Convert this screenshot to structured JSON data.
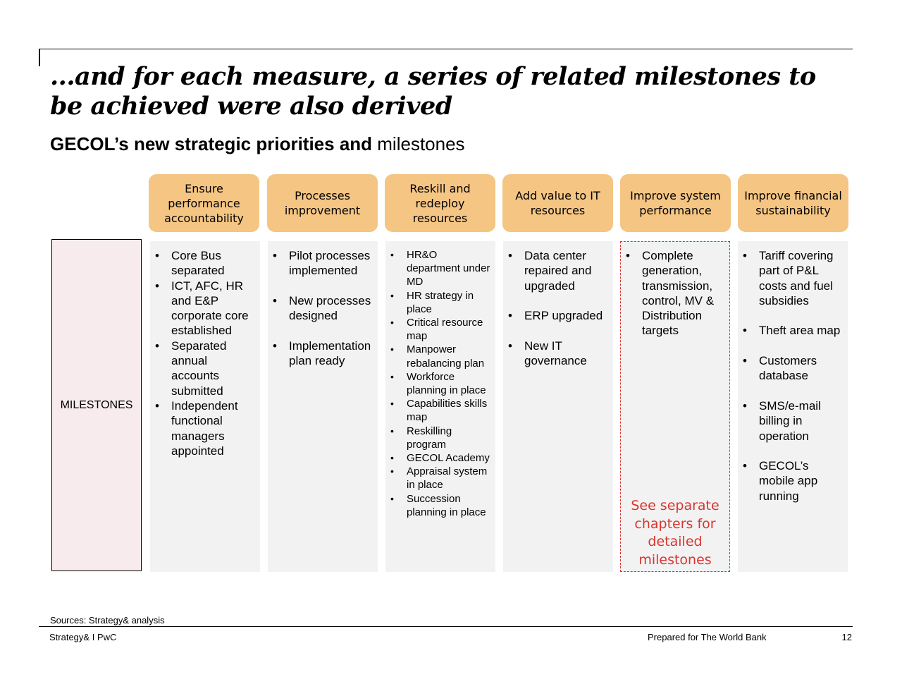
{
  "title": "...and for each measure, a series of related milestones to be achieved were also derived",
  "subtitle": {
    "bold": "GECOL’s new strategic priorities and",
    "regular": " milestones"
  },
  "row_label": "MILESTONES",
  "columns": [
    {
      "header": "Ensure performance accountability",
      "items": [
        "Core Bus separated",
        "ICT, AFC, HR and E&P corporate core established",
        "Separated annual accounts submitted",
        "Independent functional managers appointed"
      ]
    },
    {
      "header": "Processes improvement",
      "items": [
        "Pilot processes implemented",
        "New processes designed",
        "Implementation plan ready"
      ]
    },
    {
      "header": "Reskill and redeploy resources",
      "items": [
        "HR&O department under MD",
        "HR strategy in place",
        "Critical resource map",
        "Manpower rebalancing plan",
        "Workforce planning in place",
        "Capabilities skills map",
        "Reskilling program",
        "GECOL Academy",
        "Appraisal system in place",
        "Succession planning in place"
      ]
    },
    {
      "header": "Add value to IT resources",
      "items": [
        "Data center repaired and upgraded",
        "ERP upgraded",
        "New IT governance"
      ]
    },
    {
      "header": "Improve system performance",
      "items": [
        "Complete generation, transmission, control, MV & Distribution targets"
      ],
      "note": "See separate chapters for detailed milestones"
    },
    {
      "header": "Improve financial sustainability",
      "items": [
        "Tariff covering part of P&L costs and fuel subsidies",
        "Theft area map",
        "Customers database",
        "SMS/e-mail billing in operation",
        "GECOL’s mobile app running"
      ]
    }
  ],
  "colors": {
    "header_fill": "#f5c583",
    "column_fill": "#f2f2f2",
    "label_fill": "#f7ebee",
    "accent_red": "#d9352f"
  },
  "footer": {
    "sources": "Sources: Strategy& analysis",
    "left": "Strategy& I PwC",
    "center": "Prepared for The World Bank",
    "page": "12"
  }
}
